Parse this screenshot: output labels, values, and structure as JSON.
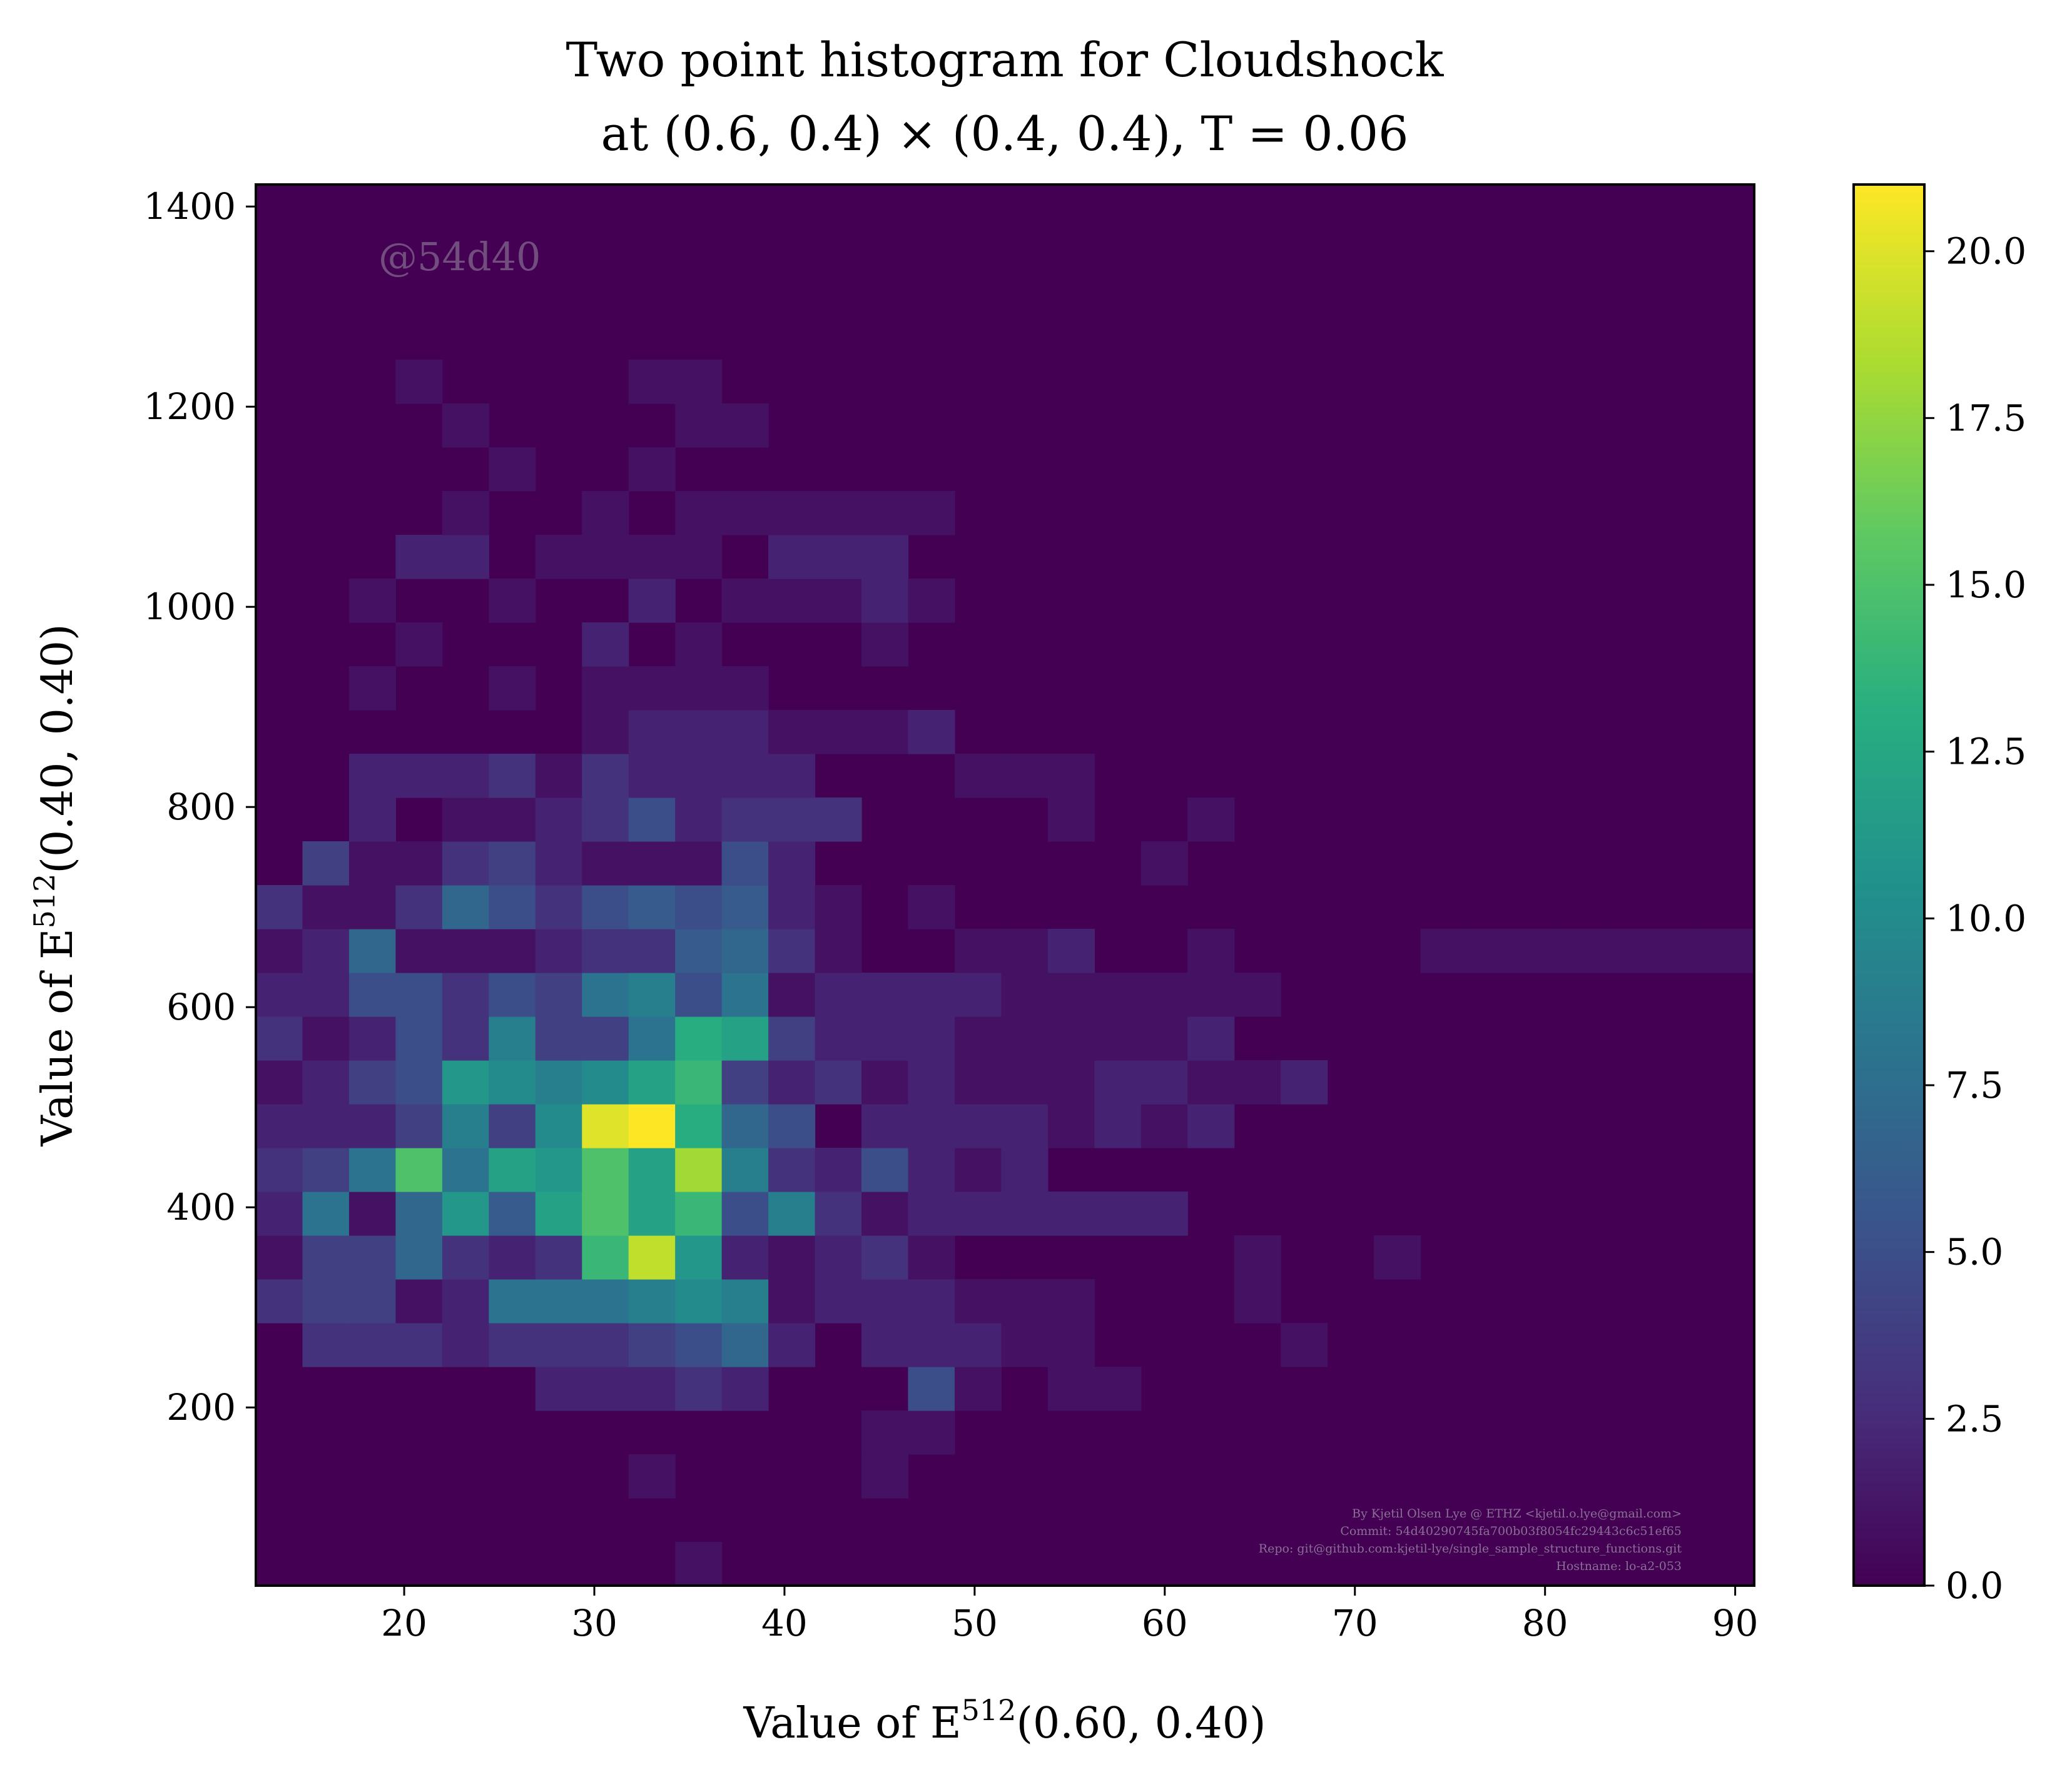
{
  "chart_data": {
    "type": "heatmap",
    "title": "Two point histogram for Cloudshock",
    "subtitle": "at (0.6, 0.4) × (0.4, 0.4), T = 0.06",
    "xlabel": "Value of E",
    "xlabel_sup": "512",
    "xlabel_arg": "(0.60, 0.40)",
    "ylabel": "Value of E",
    "ylabel_sup": "512",
    "ylabel_arg": "(0.40, 0.40)",
    "watermark": "@54d40",
    "credits": [
      "By Kjetil Olsen Lye @ ETHZ <kjetil.o.lye@gmail.com>",
      "Commit: 54d40290745fa700b03f8054fc29443c6c51ef65",
      "Repo: git@github.com:kjetil-lye/single_sample_structure_functions.git",
      "Hostname: lo-a2-053"
    ],
    "xlim": [
      12.2,
      91
    ],
    "ylim": [
      22,
      1422
    ],
    "x_edges_start": 12.2,
    "bin_width_x": 2.45,
    "y_edges_start": 22,
    "bin_height_y": 43.75,
    "grid": false,
    "colormap": "viridis",
    "vmin": 0,
    "vmax": 21,
    "x_ticks": [
      {
        "value": 20,
        "label": "20"
      },
      {
        "value": 30,
        "label": "30"
      },
      {
        "value": 40,
        "label": "40"
      },
      {
        "value": 50,
        "label": "50"
      },
      {
        "value": 60,
        "label": "60"
      },
      {
        "value": 70,
        "label": "70"
      },
      {
        "value": 80,
        "label": "80"
      },
      {
        "value": 90,
        "label": "90"
      }
    ],
    "y_ticks": [
      {
        "value": 200,
        "label": "200"
      },
      {
        "value": 400,
        "label": "400"
      },
      {
        "value": 600,
        "label": "600"
      },
      {
        "value": 800,
        "label": "800"
      },
      {
        "value": 1000,
        "label": "1000"
      },
      {
        "value": 1200,
        "label": "1200"
      },
      {
        "value": 1400,
        "label": "1400"
      }
    ],
    "colorbar_ticks": [
      {
        "value": 0,
        "label": "0.0"
      },
      {
        "value": 2.5,
        "label": "2.5"
      },
      {
        "value": 5,
        "label": "5.0"
      },
      {
        "value": 7.5,
        "label": "7.5"
      },
      {
        "value": 10,
        "label": "10.0"
      },
      {
        "value": 12.5,
        "label": "12.5"
      },
      {
        "value": 15,
        "label": "15.0"
      },
      {
        "value": 17.5,
        "label": "17.5"
      },
      {
        "value": 20,
        "label": "20.0"
      }
    ],
    "cells": [
      [
        9,
        0,
        1
      ],
      [
        8,
        2,
        1
      ],
      [
        13,
        2,
        1
      ],
      [
        13,
        3,
        1
      ],
      [
        14,
        3,
        1
      ],
      [
        6,
        4,
        2
      ],
      [
        7,
        4,
        2
      ],
      [
        8,
        4,
        2
      ],
      [
        9,
        4,
        3
      ],
      [
        10,
        4,
        2
      ],
      [
        14,
        4,
        5
      ],
      [
        15,
        4,
        1
      ],
      [
        17,
        4,
        1
      ],
      [
        18,
        4,
        1
      ],
      [
        1,
        5,
        3
      ],
      [
        2,
        5,
        3
      ],
      [
        3,
        5,
        3
      ],
      [
        4,
        5,
        2
      ],
      [
        5,
        5,
        3
      ],
      [
        6,
        5,
        3
      ],
      [
        7,
        5,
        3
      ],
      [
        8,
        5,
        4
      ],
      [
        9,
        5,
        5
      ],
      [
        10,
        5,
        7
      ],
      [
        11,
        5,
        2
      ],
      [
        13,
        5,
        2
      ],
      [
        14,
        5,
        2
      ],
      [
        15,
        5,
        2
      ],
      [
        16,
        5,
        1
      ],
      [
        17,
        5,
        1
      ],
      [
        22,
        5,
        1
      ],
      [
        0,
        6,
        3
      ],
      [
        1,
        6,
        4
      ],
      [
        2,
        6,
        4
      ],
      [
        3,
        6,
        1
      ],
      [
        4,
        6,
        2
      ],
      [
        5,
        6,
        8
      ],
      [
        6,
        6,
        8
      ],
      [
        7,
        6,
        8
      ],
      [
        8,
        6,
        9
      ],
      [
        9,
        6,
        10
      ],
      [
        10,
        6,
        9
      ],
      [
        11,
        6,
        1
      ],
      [
        12,
        6,
        2
      ],
      [
        13,
        6,
        2
      ],
      [
        14,
        6,
        2
      ],
      [
        15,
        6,
        1
      ],
      [
        16,
        6,
        1
      ],
      [
        17,
        6,
        1
      ],
      [
        21,
        6,
        1
      ],
      [
        0,
        7,
        1
      ],
      [
        1,
        7,
        4
      ],
      [
        2,
        7,
        4
      ],
      [
        3,
        7,
        7
      ],
      [
        4,
        7,
        3
      ],
      [
        5,
        7,
        2
      ],
      [
        6,
        7,
        3
      ],
      [
        7,
        7,
        14
      ],
      [
        8,
        7,
        19
      ],
      [
        9,
        7,
        11
      ],
      [
        10,
        7,
        2
      ],
      [
        11,
        7,
        1
      ],
      [
        12,
        7,
        2
      ],
      [
        13,
        7,
        3
      ],
      [
        14,
        7,
        1
      ],
      [
        21,
        7,
        1
      ],
      [
        24,
        7,
        1
      ],
      [
        0,
        8,
        2
      ],
      [
        1,
        8,
        8
      ],
      [
        2,
        8,
        1
      ],
      [
        3,
        8,
        7
      ],
      [
        4,
        8,
        11
      ],
      [
        5,
        8,
        6
      ],
      [
        6,
        8,
        12
      ],
      [
        7,
        8,
        15
      ],
      [
        8,
        8,
        12
      ],
      [
        9,
        8,
        14
      ],
      [
        10,
        8,
        5
      ],
      [
        11,
        8,
        9
      ],
      [
        12,
        8,
        3
      ],
      [
        13,
        8,
        1
      ],
      [
        14,
        8,
        2
      ],
      [
        15,
        8,
        2
      ],
      [
        16,
        8,
        2
      ],
      [
        17,
        8,
        2
      ],
      [
        18,
        8,
        2
      ],
      [
        19,
        8,
        2
      ],
      [
        0,
        9,
        3
      ],
      [
        1,
        9,
        4
      ],
      [
        2,
        9,
        8
      ],
      [
        3,
        9,
        15
      ],
      [
        4,
        9,
        8
      ],
      [
        5,
        9,
        12
      ],
      [
        6,
        9,
        11
      ],
      [
        7,
        9,
        15
      ],
      [
        8,
        9,
        12
      ],
      [
        9,
        9,
        18
      ],
      [
        10,
        9,
        9
      ],
      [
        11,
        9,
        3
      ],
      [
        12,
        9,
        2
      ],
      [
        13,
        9,
        5
      ],
      [
        14,
        9,
        2
      ],
      [
        15,
        9,
        1
      ],
      [
        16,
        9,
        2
      ],
      [
        0,
        10,
        2
      ],
      [
        1,
        10,
        2
      ],
      [
        2,
        10,
        2
      ],
      [
        3,
        10,
        4
      ],
      [
        4,
        10,
        9
      ],
      [
        5,
        10,
        4
      ],
      [
        6,
        10,
        10
      ],
      [
        7,
        10,
        20
      ],
      [
        8,
        10,
        21
      ],
      [
        9,
        10,
        13
      ],
      [
        10,
        10,
        7
      ],
      [
        11,
        10,
        5
      ],
      [
        12,
        10,
        0
      ],
      [
        13,
        10,
        2
      ],
      [
        14,
        10,
        2
      ],
      [
        15,
        10,
        2
      ],
      [
        16,
        10,
        2
      ],
      [
        17,
        10,
        1
      ],
      [
        18,
        10,
        2
      ],
      [
        19,
        10,
        1
      ],
      [
        20,
        10,
        2
      ],
      [
        0,
        11,
        1
      ],
      [
        1,
        11,
        2
      ],
      [
        2,
        11,
        4
      ],
      [
        3,
        11,
        5
      ],
      [
        4,
        11,
        11
      ],
      [
        5,
        11,
        10
      ],
      [
        6,
        11,
        9
      ],
      [
        7,
        11,
        10
      ],
      [
        8,
        11,
        12
      ],
      [
        9,
        11,
        14
      ],
      [
        10,
        11,
        4
      ],
      [
        11,
        11,
        2
      ],
      [
        12,
        11,
        3
      ],
      [
        13,
        11,
        1
      ],
      [
        14,
        11,
        2
      ],
      [
        15,
        11,
        1
      ],
      [
        16,
        11,
        1
      ],
      [
        17,
        11,
        1
      ],
      [
        18,
        11,
        2
      ],
      [
        19,
        11,
        2
      ],
      [
        20,
        11,
        1
      ],
      [
        21,
        11,
        1
      ],
      [
        22,
        11,
        2
      ],
      [
        0,
        12,
        3
      ],
      [
        1,
        12,
        1
      ],
      [
        2,
        12,
        2
      ],
      [
        3,
        12,
        5
      ],
      [
        4,
        12,
        3
      ],
      [
        5,
        12,
        9
      ],
      [
        6,
        12,
        4
      ],
      [
        7,
        12,
        4
      ],
      [
        8,
        12,
        8
      ],
      [
        9,
        12,
        13
      ],
      [
        10,
        12,
        12
      ],
      [
        11,
        12,
        4
      ],
      [
        12,
        12,
        2
      ],
      [
        13,
        12,
        2
      ],
      [
        14,
        12,
        2
      ],
      [
        15,
        12,
        1
      ],
      [
        16,
        12,
        1
      ],
      [
        17,
        12,
        1
      ],
      [
        18,
        12,
        1
      ],
      [
        19,
        12,
        1
      ],
      [
        20,
        12,
        2
      ],
      [
        0,
        13,
        2
      ],
      [
        1,
        13,
        2
      ],
      [
        2,
        13,
        5
      ],
      [
        3,
        13,
        5
      ],
      [
        4,
        13,
        3
      ],
      [
        5,
        13,
        5
      ],
      [
        6,
        13,
        4
      ],
      [
        7,
        13,
        8
      ],
      [
        8,
        13,
        9
      ],
      [
        9,
        13,
        5
      ],
      [
        10,
        13,
        8
      ],
      [
        11,
        13,
        1
      ],
      [
        12,
        13,
        2
      ],
      [
        13,
        13,
        2
      ],
      [
        14,
        13,
        2
      ],
      [
        15,
        13,
        2
      ],
      [
        16,
        13,
        1
      ],
      [
        17,
        13,
        1
      ],
      [
        18,
        13,
        1
      ],
      [
        19,
        13,
        1
      ],
      [
        20,
        13,
        1
      ],
      [
        21,
        13,
        1
      ],
      [
        0,
        14,
        1
      ],
      [
        1,
        14,
        2
      ],
      [
        2,
        14,
        7
      ],
      [
        3,
        14,
        1
      ],
      [
        4,
        14,
        1
      ],
      [
        5,
        14,
        1
      ],
      [
        6,
        14,
        2
      ],
      [
        7,
        14,
        3
      ],
      [
        8,
        14,
        3
      ],
      [
        9,
        14,
        6
      ],
      [
        10,
        14,
        7
      ],
      [
        11,
        14,
        3
      ],
      [
        12,
        14,
        1
      ],
      [
        15,
        14,
        1
      ],
      [
        16,
        14,
        1
      ],
      [
        17,
        14,
        2
      ],
      [
        20,
        14,
        1
      ],
      [
        25,
        14,
        1
      ],
      [
        26,
        14,
        1
      ],
      [
        27,
        14,
        1
      ],
      [
        28,
        14,
        1
      ],
      [
        29,
        14,
        1
      ],
      [
        30,
        14,
        1
      ],
      [
        31,
        14,
        1
      ],
      [
        32,
        14,
        1
      ],
      [
        33,
        14,
        1
      ],
      [
        34,
        14,
        1
      ],
      [
        35,
        14,
        1
      ],
      [
        36,
        14,
        1
      ],
      [
        37,
        14,
        1
      ],
      [
        38,
        14,
        2
      ],
      [
        0,
        15,
        3
      ],
      [
        1,
        15,
        1
      ],
      [
        2,
        15,
        1
      ],
      [
        3,
        15,
        3
      ],
      [
        4,
        15,
        7
      ],
      [
        5,
        15,
        5
      ],
      [
        6,
        15,
        3
      ],
      [
        7,
        15,
        5
      ],
      [
        8,
        15,
        6
      ],
      [
        9,
        15,
        5
      ],
      [
        10,
        15,
        6
      ],
      [
        11,
        15,
        2
      ],
      [
        12,
        15,
        1
      ],
      [
        14,
        15,
        1
      ],
      [
        1,
        16,
        4
      ],
      [
        2,
        16,
        1
      ],
      [
        3,
        16,
        1
      ],
      [
        4,
        16,
        3
      ],
      [
        5,
        16,
        4
      ],
      [
        6,
        16,
        2
      ],
      [
        7,
        16,
        1
      ],
      [
        8,
        16,
        1
      ],
      [
        9,
        16,
        1
      ],
      [
        10,
        16,
        5
      ],
      [
        11,
        16,
        2
      ],
      [
        19,
        16,
        1
      ],
      [
        2,
        17,
        2
      ],
      [
        4,
        17,
        1
      ],
      [
        5,
        17,
        1
      ],
      [
        6,
        17,
        2
      ],
      [
        7,
        17,
        3
      ],
      [
        8,
        17,
        5
      ],
      [
        9,
        17,
        2
      ],
      [
        10,
        17,
        3
      ],
      [
        11,
        17,
        3
      ],
      [
        12,
        17,
        3
      ],
      [
        17,
        17,
        1
      ],
      [
        20,
        17,
        1
      ],
      [
        2,
        18,
        2
      ],
      [
        3,
        18,
        2
      ],
      [
        4,
        18,
        2
      ],
      [
        5,
        18,
        3
      ],
      [
        6,
        18,
        1
      ],
      [
        7,
        18,
        3
      ],
      [
        8,
        18,
        2
      ],
      [
        9,
        18,
        2
      ],
      [
        10,
        18,
        2
      ],
      [
        11,
        18,
        2
      ],
      [
        15,
        18,
        1
      ],
      [
        16,
        18,
        1
      ],
      [
        17,
        18,
        1
      ],
      [
        7,
        19,
        1
      ],
      [
        8,
        19,
        2
      ],
      [
        9,
        19,
        2
      ],
      [
        10,
        19,
        2
      ],
      [
        11,
        19,
        1
      ],
      [
        12,
        19,
        1
      ],
      [
        13,
        19,
        1
      ],
      [
        14,
        19,
        2
      ],
      [
        2,
        20,
        1
      ],
      [
        5,
        20,
        1
      ],
      [
        7,
        20,
        1
      ],
      [
        8,
        20,
        1
      ],
      [
        9,
        20,
        1
      ],
      [
        10,
        20,
        1
      ],
      [
        3,
        21,
        1
      ],
      [
        7,
        21,
        2
      ],
      [
        9,
        21,
        1
      ],
      [
        13,
        21,
        1
      ],
      [
        2,
        22,
        1
      ],
      [
        5,
        22,
        1
      ],
      [
        8,
        22,
        2
      ],
      [
        10,
        22,
        1
      ],
      [
        11,
        22,
        1
      ],
      [
        12,
        22,
        1
      ],
      [
        13,
        22,
        2
      ],
      [
        14,
        22,
        1
      ],
      [
        3,
        23,
        2
      ],
      [
        4,
        23,
        2
      ],
      [
        6,
        23,
        1
      ],
      [
        7,
        23,
        1
      ],
      [
        8,
        23,
        1
      ],
      [
        9,
        23,
        1
      ],
      [
        11,
        23,
        2
      ],
      [
        12,
        23,
        2
      ],
      [
        13,
        23,
        2
      ],
      [
        4,
        24,
        1
      ],
      [
        7,
        24,
        1
      ],
      [
        9,
        24,
        1
      ],
      [
        10,
        24,
        1
      ],
      [
        11,
        24,
        1
      ],
      [
        12,
        24,
        1
      ],
      [
        13,
        24,
        1
      ],
      [
        14,
        24,
        1
      ],
      [
        5,
        25,
        1
      ],
      [
        8,
        25,
        1
      ],
      [
        4,
        26,
        1
      ],
      [
        9,
        26,
        1
      ],
      [
        10,
        26,
        1
      ],
      [
        3,
        27,
        1
      ],
      [
        8,
        27,
        1
      ],
      [
        9,
        27,
        1
      ]
    ]
  }
}
